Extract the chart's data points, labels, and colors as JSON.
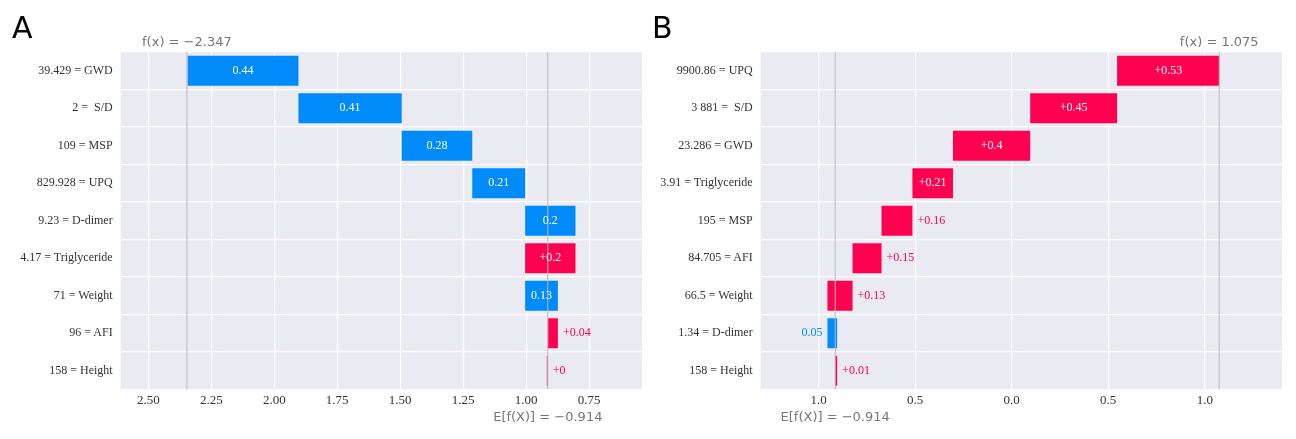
{
  "chart_data": [
    {
      "type": "bar",
      "orientation": "horizontal",
      "title": "A",
      "grid": true,
      "categories": [
        "39.429 = GWD",
        "2 =  S/D",
        "109 = MSP",
        "829.928 = UPQ",
        "9.23 = D-dimer",
        "4.17 = Triglyceride",
        "71 = Weight",
        "96 = AFI",
        "158 = Height"
      ],
      "base": [
        -1.904,
        -1.494,
        -1.214,
        -1.004,
        -0.804,
        -1.004,
        -0.874,
        -0.914,
        -0.914
      ],
      "values": [
        -0.44,
        -0.41,
        -0.28,
        -0.21,
        -0.2,
        0.2,
        -0.13,
        0.04,
        0
      ],
      "colors": [
        "#008bfb",
        "#008bfb",
        "#008bfb",
        "#008bfb",
        "#008bfb",
        "#ff0051",
        "#008bfb",
        "#ff0051",
        "#ff0051"
      ],
      "value_labels": [
        "0.44",
        "0.41",
        "0.28",
        "0.21",
        "0.2",
        "+0.2",
        "0.13",
        "+0.04",
        "+0"
      ],
      "xlim": [
        -2.61,
        -0.54
      ],
      "xticks": [
        {
          "value": -2.5,
          "label": "2.50"
        },
        {
          "value": -2.25,
          "label": "2.25"
        },
        {
          "value": -2,
          "label": "2.00"
        },
        {
          "value": -1.75,
          "label": "1.75"
        },
        {
          "value": -1.5,
          "label": "1.50"
        },
        {
          "value": -1.25,
          "label": "1.25"
        },
        {
          "value": -1,
          "label": "1.00"
        },
        {
          "value": -0.75,
          "label": "0.75"
        }
      ],
      "ref_lines": [
        {
          "axis": "x",
          "value": -2.347,
          "label": "f(x) = −2.347"
        },
        {
          "axis": "x",
          "value": -0.914,
          "label": "E[f(X)] = −0.914"
        }
      ]
    },
    {
      "type": "bar",
      "orientation": "horizontal",
      "title": "B",
      "grid": true,
      "categories": [
        "9900.86 = UPQ",
        "3 881 =  S/D",
        "23.286 = GWD",
        "3.91 = Triglyceride",
        "195 = MSP",
        "84.705 = AFI",
        "66.5 = Weight",
        "1.34 = D-dimer",
        "158 = Height"
      ],
      "base": [
        0.546,
        0.096,
        -0.304,
        -0.514,
        -0.674,
        -0.824,
        -0.954,
        -0.904,
        -0.914
      ],
      "values": [
        0.53,
        0.45,
        0.4,
        0.21,
        0.16,
        0.15,
        0.13,
        -0.05,
        0.01
      ],
      "colors": [
        "#ff0051",
        "#ff0051",
        "#ff0051",
        "#ff0051",
        "#ff0051",
        "#ff0051",
        "#ff0051",
        "#008bfb",
        "#ff0051"
      ],
      "value_labels": [
        "+0.53",
        "+0.45",
        "+0.4",
        "+0.21",
        "+0.16",
        "+0.15",
        "+0.13",
        "0.05",
        "+0.01"
      ],
      "xlim": [
        -1.3,
        1.4
      ],
      "xticks": [
        {
          "value": -1,
          "label": "1.0"
        },
        {
          "value": -0.5,
          "label": "0.5"
        },
        {
          "value": 0,
          "label": "0.0"
        },
        0.5,
        {
          "value": 1,
          "label": "1.0"
        }
      ],
      "ref_lines": [
        {
          "axis": "x",
          "value": 1.075,
          "label": "f(x) = 1.075"
        },
        {
          "axis": "x",
          "value": -0.914,
          "label": "E[f(X)] = −0.914"
        }
      ]
    }
  ]
}
